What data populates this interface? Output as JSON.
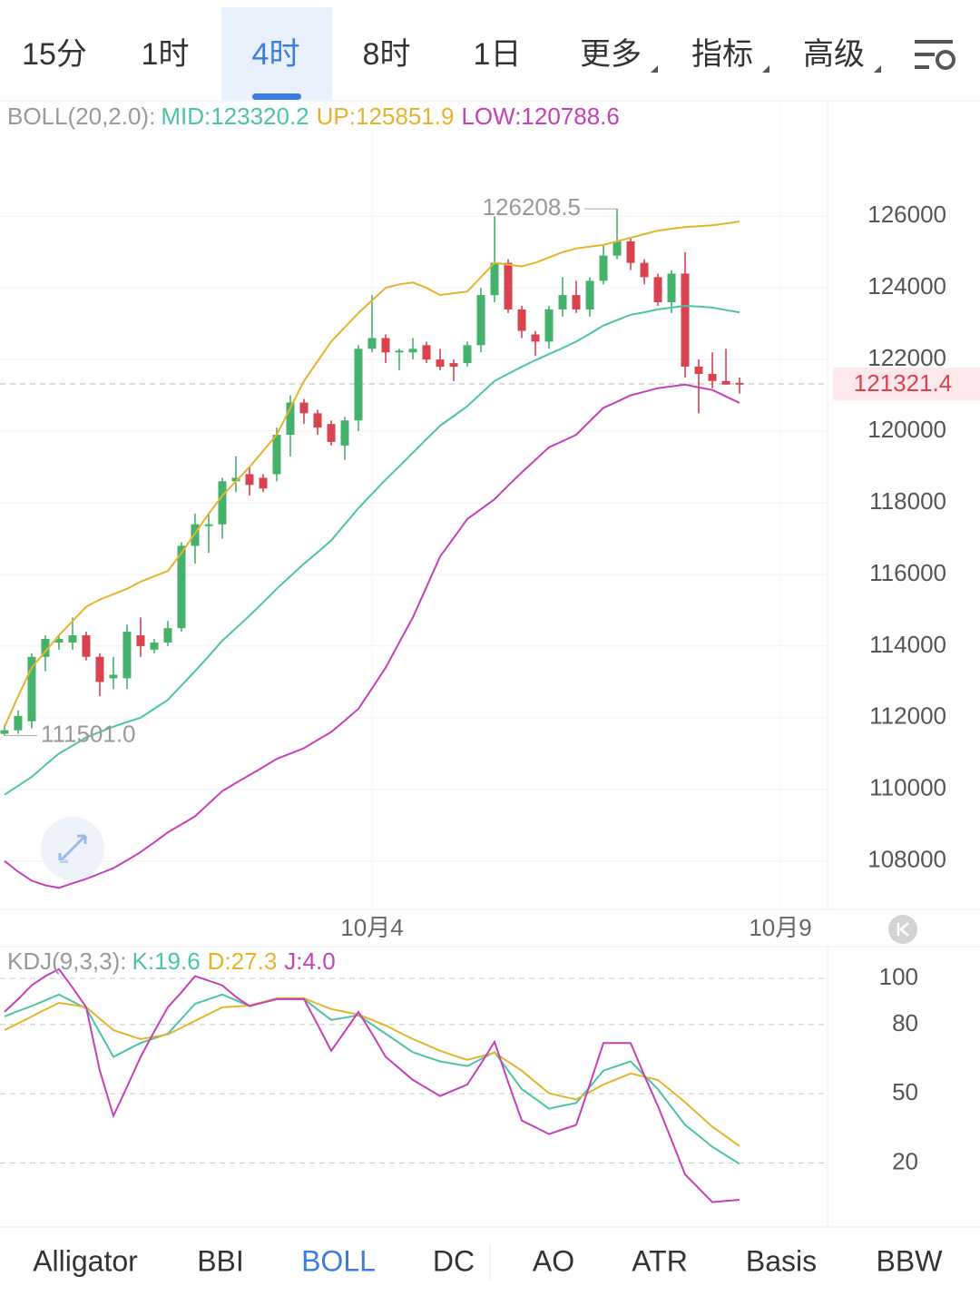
{
  "timeframes": [
    "15分",
    "1时",
    "4时",
    "8时",
    "1日"
  ],
  "active_timeframe": 2,
  "menus": [
    "更多",
    "指标",
    "高级"
  ],
  "indicator_tabs": [
    "Alligator",
    "BBI",
    "BOLL",
    "DC",
    "AO",
    "ATR",
    "Basis",
    "BBW"
  ],
  "active_indicator": 2,
  "chart_data": [
    {
      "type": "candlestick",
      "indicator": "BOLL(20,2.0):",
      "up_color": "#45b26b",
      "down_color": "#d8434f",
      "xlim": [
        -0.33,
        60.33
      ],
      "xticks": [
        {
          "value": 27,
          "label": "10月4"
        },
        {
          "value": 57,
          "label": "10月9"
        }
      ],
      "ylim": [
        106700,
        129200
      ],
      "yticks": [
        108000,
        110000,
        112000,
        114000,
        116000,
        118000,
        120000,
        122000,
        124000,
        126000
      ],
      "grid": true,
      "open": [
        111550,
        111650,
        111900,
        113700,
        114100,
        114100,
        114300,
        113700,
        113100,
        113100,
        114300,
        113900,
        114100,
        114500,
        116800,
        117400,
        117400,
        118600,
        118800,
        118700,
        118800,
        119900,
        120800,
        120500,
        120200,
        119600,
        120300,
        122300,
        122600,
        122200,
        122200,
        122400,
        122000,
        121900,
        121900,
        122400,
        123800,
        124700,
        123400,
        122700,
        122500,
        123400,
        123800,
        123400,
        124200,
        124900,
        125300,
        124700,
        124300,
        123600,
        124400,
        121800,
        121600,
        121400,
        121350
      ],
      "high": [
        111800,
        112200,
        113800,
        114300,
        114300,
        114800,
        114400,
        113800,
        113700,
        114600,
        114800,
        114200,
        114700,
        116900,
        117700,
        117700,
        118700,
        119300,
        119000,
        118800,
        120100,
        121000,
        120900,
        120600,
        120300,
        120400,
        122400,
        123800,
        122700,
        122300,
        122600,
        122500,
        122300,
        122000,
        122500,
        124000,
        126000,
        124800,
        123500,
        122800,
        123500,
        124300,
        124200,
        124300,
        125200,
        126208.5,
        125400,
        124800,
        124400,
        124500,
        125000,
        122000,
        122200,
        122300,
        121500
      ],
      "low": [
        111501,
        111550,
        111700,
        113300,
        113900,
        113900,
        113600,
        112600,
        112800,
        112800,
        113700,
        113800,
        114000,
        114400,
        116300,
        116600,
        117000,
        118300,
        118200,
        118300,
        118600,
        119300,
        120200,
        119900,
        119600,
        119200,
        120000,
        122200,
        121900,
        121700,
        122000,
        121900,
        121700,
        121400,
        121800,
        122200,
        123600,
        123300,
        122600,
        122100,
        122300,
        123200,
        123300,
        123200,
        124100,
        124800,
        124500,
        124100,
        123500,
        123300,
        121500,
        120500,
        121200,
        121300,
        121050
      ],
      "close": [
        111650,
        112050,
        113700,
        114200,
        114200,
        114300,
        113700,
        113000,
        113200,
        114400,
        114000,
        114100,
        114500,
        116800,
        117400,
        117400,
        118600,
        118700,
        118500,
        118400,
        119900,
        120800,
        120500,
        120100,
        119700,
        120300,
        122300,
        122600,
        122200,
        122250,
        122300,
        122000,
        121800,
        121800,
        122400,
        123800,
        124700,
        123400,
        122800,
        122500,
        123400,
        123800,
        123400,
        124200,
        124900,
        125300,
        124700,
        124300,
        123600,
        124400,
        121800,
        121600,
        121400,
        121300,
        121321.4
      ],
      "series": [
        {
          "name": "MID:123320.2",
          "color": "#4cc4a6",
          "values": [
            109850,
            110100,
            110350,
            110680,
            111000,
            111220,
            111450,
            111600,
            111750,
            111880,
            112000,
            112250,
            112500,
            112900,
            113300,
            113720,
            114150,
            114500,
            114850,
            115220,
            115600,
            115950,
            116300,
            116620,
            116950,
            117400,
            117850,
            118250,
            118650,
            119020,
            119400,
            119780,
            120150,
            120420,
            120700,
            121050,
            121400,
            121600,
            121800,
            121980,
            122150,
            122320,
            122500,
            122720,
            122950,
            123100,
            123250,
            123320,
            123400,
            123450,
            123500,
            123480,
            123450,
            123380,
            123320.2
          ]
        },
        {
          "name": "UP:125851.9",
          "color": "#e6b42c",
          "values": [
            111750,
            112600,
            113400,
            113850,
            114300,
            114700,
            115100,
            115300,
            115450,
            115600,
            115800,
            115950,
            116100,
            116600,
            117150,
            117700,
            118200,
            118600,
            119000,
            119450,
            119900,
            120650,
            121400,
            121950,
            122500,
            122900,
            123300,
            123650,
            124000,
            124100,
            124150,
            124000,
            123800,
            123850,
            123900,
            124300,
            124700,
            124650,
            124600,
            124700,
            124850,
            125000,
            125100,
            125150,
            125200,
            125300,
            125400,
            125500,
            125600,
            125650,
            125700,
            125720,
            125750,
            125800,
            125851.9
          ]
        },
        {
          "name": "LOW:120788.6",
          "color": "#c640b8",
          "values": [
            108000,
            107700,
            107450,
            107320,
            107250,
            107380,
            107500,
            107650,
            107800,
            108020,
            108250,
            108520,
            108800,
            109020,
            109250,
            109600,
            109950,
            110180,
            110400,
            110620,
            110850,
            111000,
            111150,
            111380,
            111600,
            111920,
            112250,
            112820,
            113400,
            114100,
            114800,
            115650,
            116500,
            117020,
            117550,
            117820,
            118100,
            118480,
            118850,
            119200,
            119550,
            119720,
            119900,
            120280,
            120650,
            120820,
            121000,
            121100,
            121200,
            121250,
            121300,
            121220,
            121150,
            120970,
            120788.6
          ]
        }
      ],
      "annotations": [
        {
          "value": 126208.5,
          "label": "126208.5"
        },
        {
          "value": 111501,
          "label": "111501.0"
        }
      ],
      "last_price": {
        "value": 121321.4,
        "label": "121321.4"
      }
    },
    {
      "type": "line",
      "indicator": "KDJ(9,3,3):",
      "xlim": [
        -0.33,
        60.33
      ],
      "ylim": [
        -7,
        113
      ],
      "yticks": [
        20,
        50,
        80,
        100
      ],
      "series": [
        {
          "name": "K:19.6",
          "color": "#4cc4a6",
          "values": [
            83.5,
            85.8,
            88,
            90.5,
            93,
            90,
            87,
            76.5,
            66,
            69,
            72,
            74,
            76,
            82.5,
            89,
            91,
            93,
            90.5,
            88,
            89.5,
            91,
            91,
            91,
            86.5,
            82,
            83,
            84,
            80,
            76,
            72,
            68,
            66,
            64,
            63,
            62,
            65,
            68,
            60,
            52,
            47.8,
            43.5,
            44.8,
            46,
            53,
            60,
            62,
            64,
            58,
            52,
            44.2,
            36.5,
            31.8,
            27,
            23.3,
            19.6
          ]
        },
        {
          "name": "D:27.3",
          "color": "#e6b42c",
          "values": [
            77.6,
            80.5,
            83.5,
            86.5,
            89.4,
            88.5,
            87.5,
            82.5,
            77.6,
            75.6,
            73.7,
            74.7,
            75.7,
            78.6,
            81.6,
            84.5,
            87.5,
            87.8,
            88.2,
            89.8,
            91.4,
            91.4,
            91.4,
            89,
            86.7,
            85.5,
            84.3,
            82,
            79.6,
            76.6,
            73.7,
            71.2,
            68.6,
            66.6,
            64.7,
            66.2,
            67.8,
            63.9,
            60,
            55.1,
            50.2,
            48.8,
            47.5,
            50.8,
            54,
            56.4,
            58.8,
            57.4,
            56,
            51.2,
            46.3,
            41,
            35.7,
            31.5,
            27.3
          ]
        },
        {
          "name": "J:4.0",
          "color": "#c640b8",
          "values": [
            85.5,
            91,
            97,
            101,
            104,
            96,
            87.5,
            60,
            40.4,
            53,
            66,
            77,
            87.5,
            94,
            101,
            99,
            97,
            92,
            88,
            89.5,
            91,
            91,
            91,
            80,
            68.6,
            77,
            85.5,
            76,
            66,
            61,
            56,
            52.5,
            49,
            51.5,
            54,
            63,
            72.5,
            55,
            38.4,
            35.5,
            32.5,
            34.5,
            36.5,
            54,
            72,
            72,
            72,
            58,
            44.7,
            30,
            15,
            9,
            3,
            3.5,
            4.0
          ]
        }
      ]
    }
  ]
}
